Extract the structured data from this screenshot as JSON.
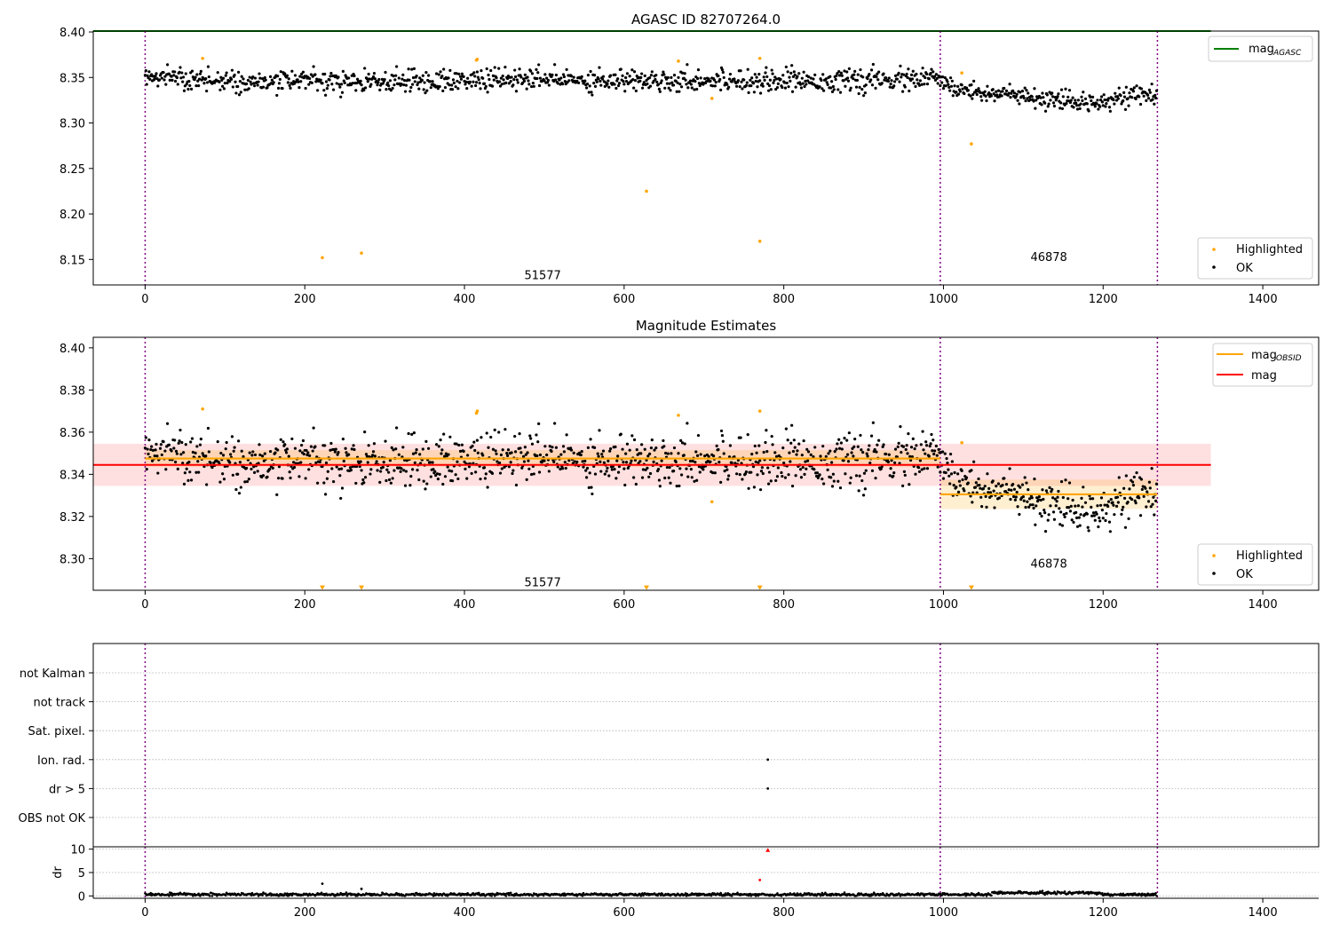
{
  "chart_data": [
    {
      "type": "scatter",
      "title": "AGASC ID 82707264.0",
      "xlabel": "",
      "ylabel": "",
      "xlim": [
        -65,
        1470
      ],
      "ylim": [
        8.122,
        8.401
      ],
      "xticks": [
        0,
        200,
        400,
        600,
        800,
        1000,
        1200,
        1400
      ],
      "yticks": [
        8.15,
        8.2,
        8.25,
        8.3,
        8.35,
        8.4
      ],
      "ytick_labels": [
        "8.15",
        "8.20",
        "8.25",
        "8.30",
        "8.35",
        "8.40"
      ],
      "vlines": [
        0,
        996,
        1268
      ],
      "obsid_labels": [
        {
          "x": 498,
          "y": 8.132,
          "text": "51577"
        },
        {
          "x": 1132,
          "y": 8.152,
          "text": "46878"
        }
      ],
      "mag_agasc": {
        "value": 8.401,
        "x_range": [
          -65,
          1335
        ],
        "color": "#008000"
      },
      "ok_series": {
        "name": "OK",
        "color": "#000000",
        "segments": [
          {
            "x_start": 0,
            "x_end": 996,
            "mean_levels": [
              [
                0,
                8.352
              ],
              [
                100,
                8.346
              ],
              [
                200,
                8.345
              ],
              [
                300,
                8.345
              ],
              [
                400,
                8.347
              ],
              [
                500,
                8.348
              ],
              [
                600,
                8.347
              ],
              [
                700,
                8.347
              ],
              [
                800,
                8.347
              ],
              [
                900,
                8.346
              ],
              [
                996,
                8.349
              ]
            ],
            "scatter": 0.006
          },
          {
            "x_start": 996,
            "x_end": 1268,
            "mean_levels": [
              [
                996,
                8.345
              ],
              [
                1020,
                8.336
              ],
              [
                1080,
                8.332
              ],
              [
                1120,
                8.325
              ],
              [
                1180,
                8.322
              ],
              [
                1220,
                8.329
              ],
              [
                1268,
                8.331
              ]
            ],
            "scatter": 0.005
          }
        ]
      },
      "highlighted_series": {
        "name": "Highlighted",
        "color": "#ffa500",
        "x": [
          72,
          222,
          271,
          415,
          416,
          628,
          668,
          710,
          770,
          770,
          1023,
          1035
        ],
        "y": [
          8.371,
          8.152,
          8.157,
          8.369,
          8.37,
          8.225,
          8.368,
          8.327,
          8.371,
          8.17,
          8.355,
          8.277
        ]
      },
      "legends": [
        {
          "location": "upper right",
          "entries": [
            {
              "label_main": "mag",
              "label_sub": "AGASC",
              "kind": "line",
              "color": "#008000"
            }
          ]
        },
        {
          "location": "lower right",
          "entries": [
            {
              "label_main": "Highlighted",
              "label_sub": "",
              "kind": "point",
              "color": "#ffa500"
            },
            {
              "label_main": "OK",
              "label_sub": "",
              "kind": "point",
              "color": "#000000"
            }
          ]
        }
      ],
      "grid": false
    },
    {
      "type": "scatter",
      "title": "Magnitude Estimates",
      "xlabel": "",
      "ylabel": "",
      "xlim": [
        -65,
        1470
      ],
      "ylim": [
        8.285,
        8.405
      ],
      "xticks": [
        0,
        200,
        400,
        600,
        800,
        1000,
        1200,
        1400
      ],
      "yticks": [
        8.3,
        8.32,
        8.34,
        8.36,
        8.38,
        8.4
      ],
      "ytick_labels": [
        "8.30",
        "8.32",
        "8.34",
        "8.36",
        "8.38",
        "8.40"
      ],
      "vlines": [
        0,
        996,
        1268
      ],
      "obsid_labels": [
        {
          "x": 498,
          "y": 8.2885,
          "text": "51577"
        },
        {
          "x": 1132,
          "y": 8.2975,
          "text": "46878"
        }
      ],
      "mag": {
        "value": 8.3445,
        "band": [
          8.3345,
          8.3545
        ],
        "x_range": [
          -65,
          1335
        ],
        "color": "#ff0000"
      },
      "mag_obsid": [
        {
          "x_range": [
            0,
            996
          ],
          "value": 8.3475,
          "band": [
            8.3435,
            8.3515
          ]
        },
        {
          "x_range": [
            996,
            1268
          ],
          "value": 8.3305,
          "band": [
            8.3235,
            8.3375
          ]
        }
      ],
      "ok_series": {
        "name": "OK",
        "color": "#000000"
      },
      "highlighted_series": {
        "name": "Highlighted",
        "color": "#ffa500",
        "x": [
          72,
          415,
          416,
          668,
          710,
          770,
          1023
        ],
        "y": [
          8.371,
          8.369,
          8.37,
          8.368,
          8.327,
          8.37,
          8.355
        ]
      },
      "offscale_markers": {
        "x": [
          222,
          271,
          628,
          770,
          1035
        ],
        "y_edge": 8.286,
        "color": "#ffa500",
        "marker": "triangle-down"
      },
      "legends": [
        {
          "location": "upper right",
          "entries": [
            {
              "label_main": "mag",
              "label_sub": "OBSID",
              "kind": "line",
              "color": "#ffa500"
            },
            {
              "label_main": "mag",
              "label_sub": "",
              "kind": "line",
              "color": "#ff0000"
            }
          ]
        },
        {
          "location": "lower right",
          "entries": [
            {
              "label_main": "Highlighted",
              "label_sub": "",
              "kind": "point",
              "color": "#ffa500"
            },
            {
              "label_main": "OK",
              "label_sub": "",
              "kind": "point",
              "color": "#000000"
            }
          ]
        }
      ],
      "grid": false
    },
    {
      "type": "scatter",
      "title": "",
      "xlabel": "",
      "ylabel": "",
      "xlim": [
        -65,
        1470
      ],
      "categories": [
        "not Kalman",
        "not track",
        "Sat. pixel.",
        "Ion. rad.",
        "dr > 5",
        "OBS not OK"
      ],
      "vlines": [
        0,
        996,
        1268
      ],
      "flag_points": [
        {
          "category": "Ion. rad.",
          "x": 780
        },
        {
          "category": "dr > 5",
          "x": 780
        }
      ],
      "grid": true
    },
    {
      "type": "scatter",
      "title": "",
      "xlabel": "",
      "ylabel": "dr",
      "xlim": [
        -65,
        1470
      ],
      "ylim": [
        -0.5,
        10.5
      ],
      "xticks": [
        0,
        200,
        400,
        600,
        800,
        1000,
        1200,
        1400
      ],
      "yticks": [
        0,
        5,
        10
      ],
      "vlines": [
        0,
        996,
        1268
      ],
      "dr_series": {
        "name": "dr",
        "color": "#000000",
        "typical": 0.3,
        "spread": 0.15,
        "x_range": [
          0,
          1268
        ]
      },
      "dr_outliers": [
        {
          "x": 222,
          "y": 2.6,
          "color": "#000000"
        },
        {
          "x": 271,
          "y": 1.5,
          "color": "#000000"
        },
        {
          "x": 770,
          "y": 3.4,
          "color": "#ff0000"
        },
        {
          "x": 780,
          "y": 9.8,
          "color": "#ff0000",
          "marker": "triangle-up"
        }
      ],
      "grid": true
    }
  ]
}
